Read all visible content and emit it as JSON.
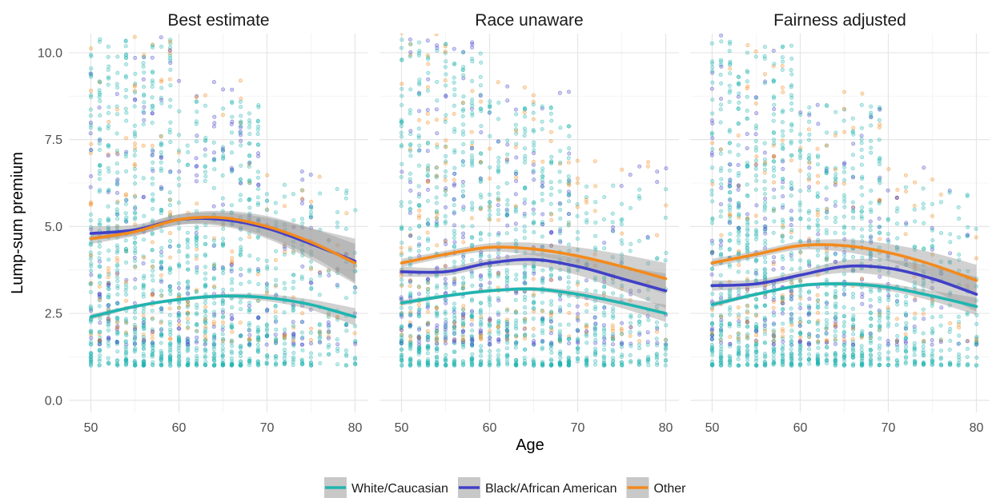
{
  "chart_data": {
    "type": "scatter",
    "xlabel": "Age",
    "ylabel": "Lump-sum premium",
    "xlim": [
      47.5,
      81.5
    ],
    "ylim": [
      -0.35,
      10.55
    ],
    "x_ticks": [
      50,
      60,
      70,
      80
    ],
    "y_ticks": [
      0.0,
      2.5,
      5.0,
      7.5,
      10.0
    ],
    "y_tick_labels": [
      "0.0",
      "2.5",
      "5.0",
      "7.5",
      "10.0"
    ],
    "grid": true,
    "legend_position": "bottom",
    "legend": [
      {
        "label": "White/Caucasian",
        "color": "#1fb5b0"
      },
      {
        "label": "Black/African American",
        "color": "#4040c8"
      },
      {
        "label": "Other",
        "color": "#f28a1e"
      }
    ],
    "panels": [
      {
        "title": "Best estimate",
        "series": [
          {
            "group": "White/Caucasian",
            "color": "#1fb5b0",
            "x": [
              50,
              55,
              60,
              65,
              70,
              75,
              80
            ],
            "y": [
              2.4,
              2.7,
              2.9,
              3.0,
              2.95,
              2.75,
              2.4
            ],
            "se": [
              0.08,
              0.05,
              0.05,
              0.06,
              0.1,
              0.15,
              0.25
            ]
          },
          {
            "group": "Black/African American",
            "color": "#4040c8",
            "x": [
              50,
              55,
              60,
              65,
              70,
              75,
              80
            ],
            "y": [
              4.8,
              4.9,
              5.2,
              5.2,
              4.95,
              4.5,
              4.0
            ],
            "se": [
              0.2,
              0.15,
              0.15,
              0.2,
              0.3,
              0.45,
              0.65
            ]
          },
          {
            "group": "Other",
            "color": "#f28a1e",
            "x": [
              50,
              55,
              60,
              65,
              70,
              75,
              80
            ],
            "y": [
              4.65,
              4.85,
              5.2,
              5.25,
              5.0,
              4.55,
              3.95
            ],
            "se": [
              0.15,
              0.12,
              0.15,
              0.2,
              0.3,
              0.4,
              0.55
            ]
          }
        ]
      },
      {
        "title": "Race unaware",
        "series": [
          {
            "group": "White/Caucasian",
            "color": "#1fb5b0",
            "x": [
              50,
              55,
              60,
              65,
              70,
              75,
              80
            ],
            "y": [
              2.8,
              3.0,
              3.15,
              3.2,
              3.05,
              2.8,
              2.5
            ],
            "se": [
              0.08,
              0.05,
              0.05,
              0.06,
              0.1,
              0.15,
              0.25
            ]
          },
          {
            "group": "Black/African American",
            "color": "#4040c8",
            "x": [
              50,
              55,
              60,
              65,
              70,
              75,
              80
            ],
            "y": [
              3.7,
              3.7,
              3.95,
              4.05,
              3.85,
              3.5,
              3.15
            ],
            "se": [
              0.15,
              0.12,
              0.12,
              0.18,
              0.25,
              0.35,
              0.5
            ]
          },
          {
            "group": "Other",
            "color": "#f28a1e",
            "x": [
              50,
              55,
              60,
              65,
              70,
              75,
              80
            ],
            "y": [
              3.95,
              4.2,
              4.4,
              4.35,
              4.15,
              3.85,
              3.5
            ],
            "se": [
              0.12,
              0.1,
              0.12,
              0.18,
              0.25,
              0.35,
              0.45
            ]
          }
        ]
      },
      {
        "title": "Fairness adjusted",
        "series": [
          {
            "group": "White/Caucasian",
            "color": "#1fb5b0",
            "x": [
              50,
              55,
              60,
              65,
              70,
              75,
              80
            ],
            "y": [
              2.75,
              3.05,
              3.3,
              3.35,
              3.25,
              3.0,
              2.7
            ],
            "se": [
              0.08,
              0.05,
              0.05,
              0.06,
              0.1,
              0.15,
              0.25
            ]
          },
          {
            "group": "Black/African American",
            "color": "#4040c8",
            "x": [
              50,
              55,
              60,
              65,
              70,
              75,
              80
            ],
            "y": [
              3.3,
              3.35,
              3.6,
              3.85,
              3.8,
              3.5,
              3.05
            ],
            "se": [
              0.15,
              0.12,
              0.12,
              0.18,
              0.25,
              0.35,
              0.5
            ]
          },
          {
            "group": "Other",
            "color": "#f28a1e",
            "x": [
              50,
              55,
              60,
              65,
              70,
              75,
              80
            ],
            "y": [
              3.95,
              4.2,
              4.45,
              4.45,
              4.25,
              3.9,
              3.45
            ],
            "se": [
              0.12,
              0.1,
              0.12,
              0.18,
              0.25,
              0.35,
              0.45
            ]
          }
        ]
      }
    ]
  }
}
